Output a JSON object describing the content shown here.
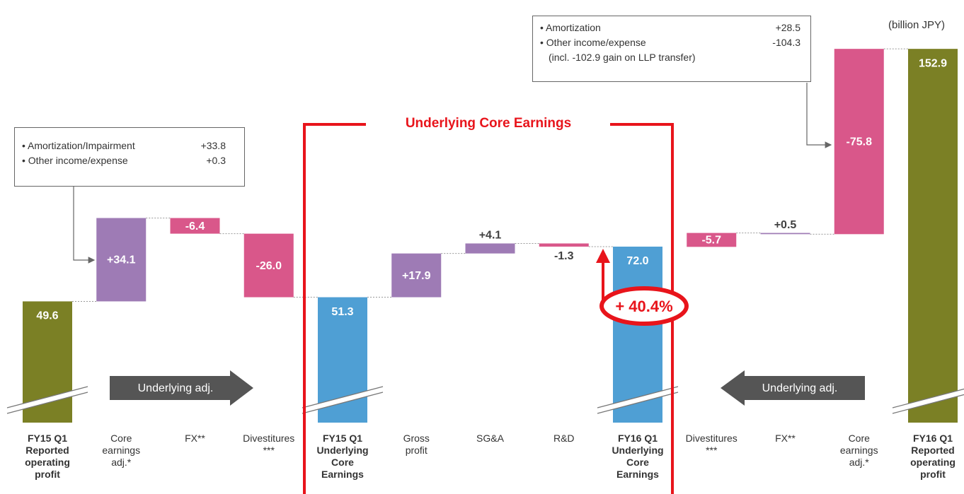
{
  "chart_data": {
    "type": "waterfall",
    "categories": [
      "FY15 Q1\nReported\noperating\nprofit",
      "Core\nearnings\nadj.*",
      "FX**",
      "Divestitures\n***",
      "FY15 Q1\nUnderlying\nCore\nEarnings",
      "Gross\nprofit",
      "SG&A",
      "R&D",
      "FY16 Q1\nUnderlying\nCore\nEarnings",
      "Divestitures\n***",
      "FX**",
      "Core\nearnings\nadj.*",
      "FY16 Q1\nReported\noperating\nprofit"
    ],
    "measure": [
      "total",
      "relative",
      "relative",
      "relative",
      "total",
      "relative",
      "relative",
      "relative",
      "total",
      "relative",
      "relative",
      "relative",
      "total"
    ],
    "values": [
      49.6,
      34.1,
      -6.4,
      -26.0,
      51.3,
      17.9,
      4.1,
      -1.3,
      72.0,
      -5.7,
      0.5,
      -75.8,
      152.9
    ],
    "value_labels": [
      "49.6",
      "+34.1",
      "-6.4",
      "-26.0",
      "51.3",
      "+17.9",
      "+4.1",
      "-1.3",
      "72.0",
      "-5.7",
      "+0.5",
      "-75.8",
      "152.9"
    ],
    "colors": [
      "#7b8025",
      "#9e7bb5",
      "#d9578a",
      "#d9578a",
      "#4f9fd4",
      "#9e7bb5",
      "#9e7bb5",
      "#d9578a",
      "#4f9fd4",
      "#d9578a",
      "#9e7bb5",
      "#d9578a",
      "#7b8025"
    ],
    "ylim": [
      0,
      170
    ],
    "unit": "(billion JPY)",
    "highlight": {
      "label": "Underlying Core Earnings",
      "change": "+ 40.4%"
    },
    "arrows": [
      "Underlying adj.",
      "Underlying adj."
    ],
    "notes": [
      {
        "items": [
          {
            "label": "• Amortization/Impairment",
            "value": "+33.8"
          },
          {
            "label": "• Other income/expense",
            "value": "+0.3"
          }
        ]
      },
      {
        "items": [
          {
            "label": "• Amortization",
            "value": "+28.5"
          },
          {
            "label": "• Other income/expense",
            "value": "-104.3"
          }
        ],
        "detail": "(incl. -102.9 gain on LLP transfer)"
      }
    ]
  }
}
